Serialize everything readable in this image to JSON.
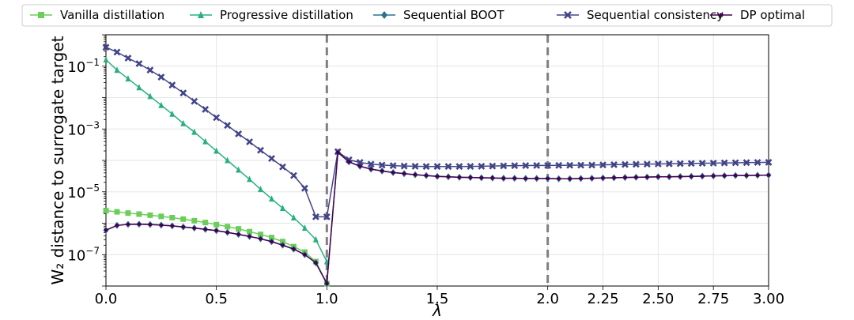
{
  "chart_data": {
    "type": "line",
    "xlabel": "λ",
    "ylabel": "W₂ distance to surrogate target",
    "y_scale": "log",
    "ylim": [
      1e-08,
      1.0
    ],
    "y_ticks": [
      0.1,
      0.001,
      1e-05,
      1e-07
    ],
    "y_tick_labels": [
      {
        "base": "10",
        "exp": "−1"
      },
      {
        "base": "10",
        "exp": "−3"
      },
      {
        "base": "10",
        "exp": "−5"
      },
      {
        "base": "10",
        "exp": "−7"
      }
    ],
    "x_ticks": [
      0.0,
      0.5,
      1.0,
      1.5,
      2.0,
      2.25,
      2.5,
      2.75,
      3.0
    ],
    "x_tick_labels": [
      "0.0",
      "0.5",
      "1.0",
      "1.5",
      "2.0",
      "2.25",
      "2.50",
      "2.75",
      "3.00"
    ],
    "x_axis_note": "piecewise axis: 0–2 spans the first two thirds, 2–3 the last third",
    "grid": true,
    "legend_position": "top",
    "vertical_lines": [
      1.0,
      2.0
    ],
    "vertical_line_color": "#808080",
    "series": [
      {
        "name": "Vanilla distillation",
        "color": "#6ccd59",
        "marker": "square",
        "x": [
          0.0,
          0.05,
          0.1,
          0.15,
          0.2,
          0.25,
          0.3,
          0.35,
          0.4,
          0.45,
          0.5,
          0.55,
          0.6,
          0.65,
          0.7,
          0.75,
          0.8,
          0.85,
          0.9,
          0.95,
          1.0
        ],
        "y": [
          2.5e-06,
          2.3e-06,
          2.1e-06,
          1.95e-06,
          1.8e-06,
          1.65e-06,
          1.5e-06,
          1.35e-06,
          1.2e-06,
          1.05e-06,
          9e-07,
          7.8e-07,
          6.6e-07,
          5.4e-07,
          4.4e-07,
          3.5e-07,
          2.6e-07,
          1.8e-07,
          1.2e-07,
          6e-08,
          1.2e-08
        ]
      },
      {
        "name": "Progressive distillation",
        "color": "#2ab07f",
        "marker": "triangle",
        "x": [
          0.0,
          0.05,
          0.1,
          0.15,
          0.2,
          0.25,
          0.3,
          0.35,
          0.4,
          0.45,
          0.5,
          0.55,
          0.6,
          0.65,
          0.7,
          0.75,
          0.8,
          0.85,
          0.9,
          0.95,
          1.0
        ],
        "y": [
          0.16,
          0.075,
          0.04,
          0.021,
          0.011,
          0.0057,
          0.003,
          0.0015,
          0.0008,
          0.0004,
          0.0002,
          0.0001,
          5e-05,
          2.5e-05,
          1.2e-05,
          6e-06,
          3e-06,
          1.5e-06,
          7e-07,
          3e-07,
          6e-08
        ]
      },
      {
        "name": "Sequential BOOT",
        "color": "#2c728e",
        "marker": "diamond",
        "x": [
          0.0,
          0.05,
          0.1,
          0.15,
          0.2,
          0.25,
          0.3,
          0.35,
          0.4,
          0.45,
          0.5,
          0.55,
          0.6,
          0.65,
          0.7,
          0.75,
          0.8,
          0.85,
          0.9,
          0.95,
          1.0,
          1.05,
          1.1,
          1.15,
          1.2,
          1.25,
          1.3,
          1.35,
          1.4,
          1.45,
          1.5,
          1.55,
          1.6,
          1.65,
          1.7,
          1.75,
          1.8,
          1.85,
          1.9,
          1.95,
          2.0,
          2.05,
          2.1,
          2.15,
          2.2,
          2.25,
          2.3,
          2.35,
          2.4,
          2.45,
          2.5,
          2.55,
          2.6,
          2.65,
          2.7,
          2.75,
          2.8,
          2.85,
          2.9,
          2.95,
          3.0
        ],
        "y": [
          6e-07,
          8.5e-07,
          9.2e-07,
          9.3e-07,
          9.1e-07,
          8.7e-07,
          8.2e-07,
          7.6e-07,
          7e-07,
          6.4e-07,
          5.8e-07,
          5.1e-07,
          4.4e-07,
          3.8e-07,
          3.2e-07,
          2.6e-07,
          2e-07,
          1.5e-07,
          1e-07,
          5.5e-08,
          1.2e-08,
          0.00018,
          9e-05,
          6.5e-05,
          5.3e-05,
          4.6e-05,
          4.1e-05,
          3.8e-05,
          3.5e-05,
          3.3e-05,
          3.1e-05,
          3e-05,
          2.9e-05,
          2.85e-05,
          2.8e-05,
          2.75e-05,
          2.7e-05,
          2.7e-05,
          2.65e-05,
          2.65e-05,
          2.65e-05,
          2.6e-05,
          2.6e-05,
          2.65e-05,
          2.7e-05,
          2.75e-05,
          2.8e-05,
          2.85e-05,
          2.9e-05,
          2.95e-05,
          3e-05,
          3e-05,
          3.05e-05,
          3.1e-05,
          3.15e-05,
          3.2e-05,
          3.25e-05,
          3.3e-05,
          3.3e-05,
          3.35e-05,
          3.4e-05
        ]
      },
      {
        "name": "Sequential consistency",
        "color": "#414487",
        "marker": "x",
        "x": [
          0.0,
          0.05,
          0.1,
          0.15,
          0.2,
          0.25,
          0.3,
          0.35,
          0.4,
          0.45,
          0.5,
          0.55,
          0.6,
          0.65,
          0.7,
          0.75,
          0.8,
          0.85,
          0.9,
          0.95,
          1.0,
          1.05,
          1.1,
          1.15,
          1.2,
          1.25,
          1.3,
          1.35,
          1.4,
          1.45,
          1.5,
          1.55,
          1.6,
          1.65,
          1.7,
          1.75,
          1.8,
          1.85,
          1.9,
          1.95,
          2.0,
          2.05,
          2.1,
          2.15,
          2.2,
          2.25,
          2.3,
          2.35,
          2.4,
          2.45,
          2.5,
          2.55,
          2.6,
          2.65,
          2.7,
          2.75,
          2.8,
          2.85,
          2.9,
          2.95,
          3.0
        ],
        "y": [
          0.4,
          0.28,
          0.18,
          0.12,
          0.075,
          0.045,
          0.025,
          0.014,
          0.0076,
          0.0042,
          0.0023,
          0.0013,
          0.0007,
          0.00039,
          0.00021,
          0.000115,
          6.2e-05,
          3.3e-05,
          1.3e-05,
          1.6e-06,
          1.6e-06,
          0.00019,
          0.000105,
          8.6e-05,
          7.6e-05,
          7.1e-05,
          6.8e-05,
          6.6e-05,
          6.5e-05,
          6.4e-05,
          6.4e-05,
          6.4e-05,
          6.4e-05,
          6.45e-05,
          6.5e-05,
          6.6e-05,
          6.7e-05,
          6.8e-05,
          6.85e-05,
          6.9e-05,
          6.9e-05,
          6.95e-05,
          7e-05,
          7.05e-05,
          7.1e-05,
          7.2e-05,
          7.3e-05,
          7.4e-05,
          7.5e-05,
          7.6e-05,
          7.7e-05,
          7.8e-05,
          7.9e-05,
          8e-05,
          8.1e-05,
          8.2e-05,
          8.3e-05,
          8.4e-05,
          8.5e-05,
          8.6e-05,
          8.7e-05
        ]
      },
      {
        "name": "DP optimal",
        "color": "#440154",
        "marker": "dot",
        "x": [
          0.0,
          0.05,
          0.1,
          0.15,
          0.2,
          0.25,
          0.3,
          0.35,
          0.4,
          0.45,
          0.5,
          0.55,
          0.6,
          0.65,
          0.7,
          0.75,
          0.8,
          0.85,
          0.9,
          0.95,
          1.0,
          1.05,
          1.1,
          1.15,
          1.2,
          1.25,
          1.3,
          1.35,
          1.4,
          1.45,
          1.5,
          1.55,
          1.6,
          1.65,
          1.7,
          1.75,
          1.8,
          1.85,
          1.9,
          1.95,
          2.0,
          2.05,
          2.1,
          2.15,
          2.2,
          2.25,
          2.3,
          2.35,
          2.4,
          2.45,
          2.5,
          2.55,
          2.6,
          2.65,
          2.7,
          2.75,
          2.8,
          2.85,
          2.9,
          2.95,
          3.0
        ],
        "y": [
          6e-07,
          8.5e-07,
          9.2e-07,
          9.3e-07,
          9.1e-07,
          8.7e-07,
          8.2e-07,
          7.6e-07,
          7e-07,
          6.4e-07,
          5.8e-07,
          5.1e-07,
          4.4e-07,
          3.8e-07,
          3.2e-07,
          2.6e-07,
          2e-07,
          1.5e-07,
          1e-07,
          5.5e-08,
          1.2e-08,
          0.00018,
          9e-05,
          6.5e-05,
          5.3e-05,
          4.6e-05,
          4.1e-05,
          3.8e-05,
          3.5e-05,
          3.3e-05,
          3.1e-05,
          3e-05,
          2.9e-05,
          2.85e-05,
          2.8e-05,
          2.75e-05,
          2.7e-05,
          2.7e-05,
          2.65e-05,
          2.65e-05,
          2.65e-05,
          2.6e-05,
          2.6e-05,
          2.65e-05,
          2.7e-05,
          2.75e-05,
          2.8e-05,
          2.85e-05,
          2.9e-05,
          2.95e-05,
          3e-05,
          3e-05,
          3.05e-05,
          3.1e-05,
          3.15e-05,
          3.2e-05,
          3.25e-05,
          3.3e-05,
          3.3e-05,
          3.35e-05,
          3.4e-05
        ]
      }
    ]
  }
}
